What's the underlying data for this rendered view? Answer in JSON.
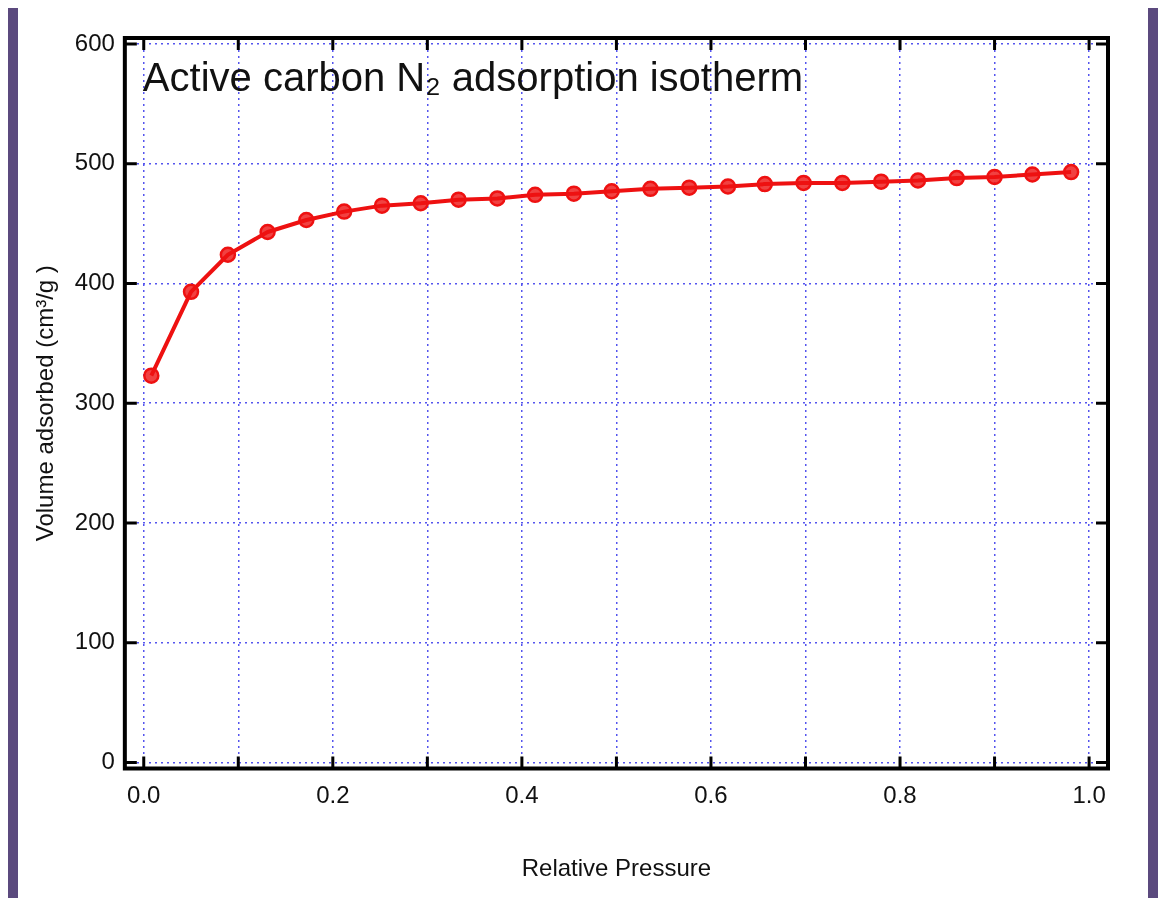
{
  "chart_data": {
    "type": "line",
    "title": "Active carbon N₂ adsorption isotherm",
    "xlabel": "Relative Pressure",
    "ylabel": "Volume adsorbed (cm³/g )",
    "x": [
      0.008,
      0.05,
      0.089,
      0.131,
      0.172,
      0.212,
      0.252,
      0.293,
      0.333,
      0.374,
      0.414,
      0.455,
      0.495,
      0.536,
      0.577,
      0.618,
      0.657,
      0.698,
      0.739,
      0.78,
      0.819,
      0.86,
      0.9,
      0.94,
      0.981
    ],
    "series": [
      {
        "color": "#ee1111",
        "values": [
          323,
          393,
          424,
          443,
          453,
          460,
          465,
          467,
          470,
          471,
          474,
          475,
          477,
          479,
          480,
          481,
          483,
          484,
          484,
          485,
          486,
          488,
          489,
          491,
          493
        ]
      }
    ],
    "xlim": [
      -0.02,
      1.02
    ],
    "ylim": [
      -5,
      605
    ],
    "xticks": [
      {
        "value": 0,
        "label": "0.0"
      },
      {
        "value": 0.1,
        "label": null
      },
      {
        "value": 0.2,
        "label": "0.2"
      },
      {
        "value": 0.3,
        "label": null
      },
      {
        "value": 0.4,
        "label": "0.4"
      },
      {
        "value": 0.5,
        "label": null
      },
      {
        "value": 0.6,
        "label": "0.6"
      },
      {
        "value": 0.7,
        "label": null
      },
      {
        "value": 0.8,
        "label": "0.8"
      },
      {
        "value": 0.9,
        "label": null
      },
      {
        "value": 1,
        "label": "1.0"
      }
    ],
    "yticks": [
      0,
      100,
      200,
      300,
      400,
      500,
      600
    ],
    "grid": true,
    "legend": false,
    "marker": "circle",
    "line_style": "solid"
  }
}
